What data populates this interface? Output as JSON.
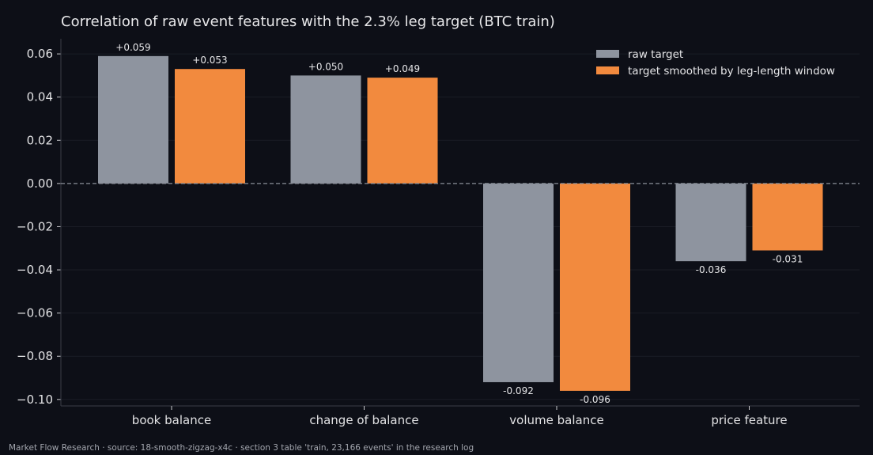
{
  "colors": {
    "background": "#0d0f17",
    "axis": "#3a3d47",
    "grid": "#1a1d26",
    "zero_line": "#8a8f99",
    "raw_target": "#8e949f",
    "smoothed_target": "#f28a3e"
  },
  "footer": "Market Flow Research · source: 18-smooth-zigzag-x4c · section 3 table 'train, 23,166 events' in the research log",
  "chart_data": {
    "type": "bar",
    "title": "Correlation of raw event features with the 2.3% leg target (BTC train)",
    "xlabel": "",
    "ylabel": "",
    "categories": [
      "book balance",
      "change of balance",
      "volume balance",
      "price feature"
    ],
    "series": [
      {
        "name": "raw target",
        "color": "#8e949f",
        "values": [
          0.059,
          0.05,
          -0.092,
          -0.036
        ],
        "labels": [
          "+0.059",
          "+0.050",
          "-0.092",
          "-0.036"
        ]
      },
      {
        "name": "target smoothed by leg-length window",
        "color": "#f28a3e",
        "values": [
          0.053,
          0.049,
          -0.096,
          -0.031
        ],
        "labels": [
          "+0.053",
          "+0.049",
          "-0.096",
          "-0.031"
        ]
      }
    ],
    "ylim": [
      -0.103,
      0.067
    ],
    "yticks": [
      0.06,
      0.04,
      0.02,
      0.0,
      -0.02,
      -0.04,
      -0.06,
      -0.08,
      -0.1
    ],
    "ytick_labels": [
      "0.06",
      "0.04",
      "0.02",
      "0.00",
      "−0.02",
      "−0.04",
      "−0.06",
      "−0.08",
      "−0.10"
    ],
    "grid": true,
    "zero_line": "dashed",
    "legend": "top-right"
  }
}
